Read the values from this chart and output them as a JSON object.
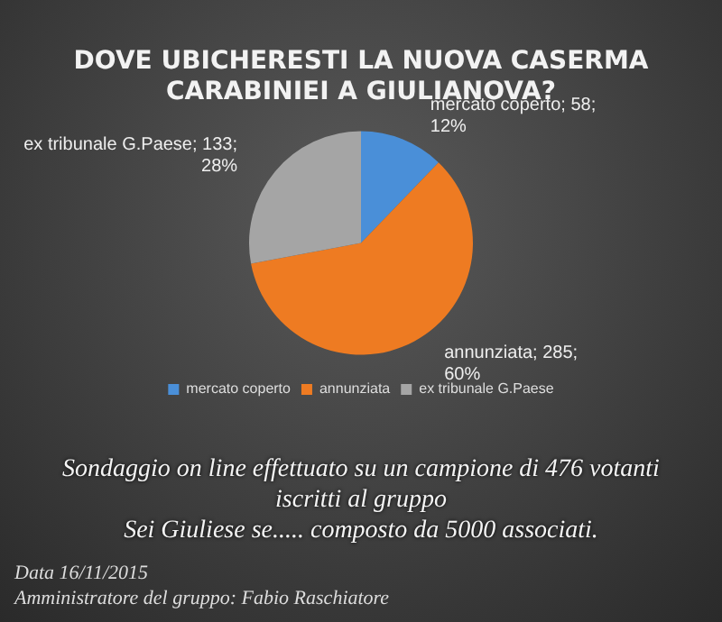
{
  "chart_data": {
    "type": "pie",
    "title": "DOVE UBICHERESTI LA NUOVA CASERMA CARABINIEI A GIULIANOVA?",
    "categories": [
      "mercato coperto",
      "annunziata",
      "ex tribunale G.Paese"
    ],
    "values": [
      58,
      285,
      133
    ],
    "value_labels": [
      "mercato coperto; 58; 12%",
      "annunziata; 285; 60%",
      "ex tribunale G.Paese; 133; 28%"
    ],
    "colors": [
      "#4a8fd8",
      "#ee7b22",
      "#a5a5a5"
    ],
    "legend": "bottom",
    "annotations": [
      "Sondaggio on line effettuato su un campione di 476 votanti iscritti al gruppo",
      "Sei Giuliese se..... composto da 5000 associati.",
      "Data 16/11/2015",
      "Amministratore del gruppo: Fabio Raschiatore"
    ]
  }
}
